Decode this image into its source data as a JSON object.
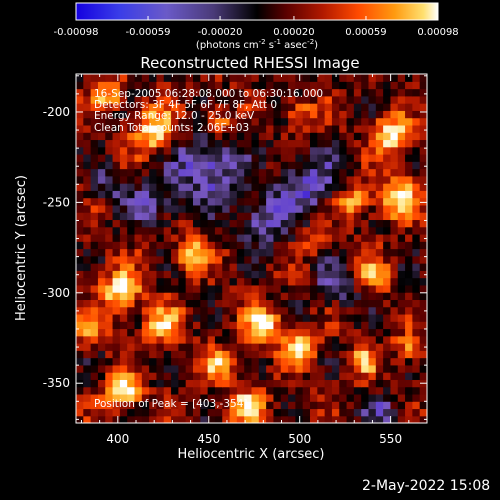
{
  "chart_data": {
    "type": "heatmap",
    "title": "Reconstructed RHESSI Image",
    "xlabel": "Heliocentric X (arcsec)",
    "ylabel": "Heliocentric Y (arcsec)",
    "xlim": [
      377,
      570
    ],
    "ylim": [
      -372,
      -179
    ],
    "xticks": [
      400,
      450,
      500,
      550
    ],
    "yticks": [
      -350,
      -300,
      -250,
      -200
    ],
    "colorbar": {
      "min": -0.00098,
      "max": 0.00098,
      "ticks": [
        "-0.00098",
        "-0.00059",
        "-0.00020",
        "0.00020",
        "0.00059",
        "0.00098"
      ],
      "units_main": "(photons cm",
      "units_exp1": "-2",
      "units_s": " s",
      "units_exp2": "-1",
      "units_asec": " asec",
      "units_exp3": "-2",
      "units_close": ")"
    },
    "annotations": {
      "time_range": "16-Sep-2005 06:28:08.000 to 06:30:16.000",
      "detectors": "Detectors: 3F 4F 5F 6F 7F 8F, Att 0",
      "energy": "Energy Range: 12.0 - 25.0 keV",
      "clean": "Clean    Total counts: 2.06E+03",
      "peak": "Position of Peak = [403,-354]"
    },
    "grid": false
  },
  "footer": {
    "timestamp": "2-May-2022 15:08"
  },
  "colors": {
    "background": "#000000",
    "foreground": "#ffffff",
    "colormap": [
      "#1a00d8",
      "#5a3bd2",
      "#7a59c6",
      "#3a2a50",
      "#000000",
      "#5a0000",
      "#b01800",
      "#ff4a00",
      "#ff9a10",
      "#ffe070",
      "#ffffff"
    ]
  }
}
